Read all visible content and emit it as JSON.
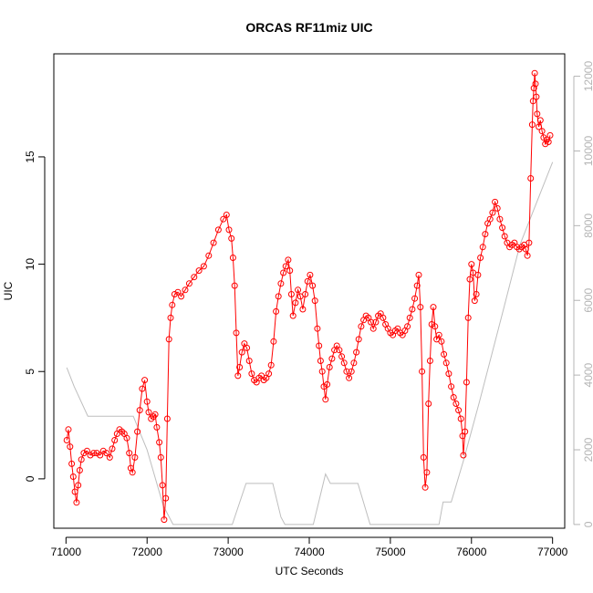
{
  "chart_data": {
    "type": "line",
    "title": "ORCAS RF11miz UIC",
    "xlabel": "UTC Seconds",
    "ylabel": "UIC",
    "xlim": [
      70850,
      77150
    ],
    "ylim": [
      -2.3,
      19.8
    ],
    "y2lim": [
      -100,
      12600
    ],
    "x_ticks": [
      71000,
      72000,
      73000,
      74000,
      75000,
      76000,
      77000
    ],
    "y_ticks": [
      0,
      5,
      10,
      15
    ],
    "y2_ticks": [
      0,
      2000,
      4000,
      6000,
      8000,
      10000,
      12000
    ],
    "grid": false,
    "colors": {
      "uic": "#ff0000",
      "altitude": "#bebebe",
      "right_axis": "#b4b4b4",
      "frame": "#000000"
    },
    "series": [
      {
        "axis": "left",
        "style": "line+circles",
        "points": [
          [
            71010,
            1.8
          ],
          [
            71030,
            2.3
          ],
          [
            71050,
            1.5
          ],
          [
            71070,
            0.7
          ],
          [
            71090,
            0.1
          ],
          [
            71110,
            -0.6
          ],
          [
            71130,
            -1.1
          ],
          [
            71150,
            -0.3
          ],
          [
            71170,
            0.4
          ],
          [
            71190,
            0.9
          ],
          [
            71220,
            1.2
          ],
          [
            71260,
            1.3
          ],
          [
            71300,
            1.1
          ],
          [
            71340,
            1.2
          ],
          [
            71380,
            1.2
          ],
          [
            71420,
            1.1
          ],
          [
            71460,
            1.3
          ],
          [
            71500,
            1.2
          ],
          [
            71540,
            1.0
          ],
          [
            71570,
            1.4
          ],
          [
            71600,
            1.8
          ],
          [
            71630,
            2.1
          ],
          [
            71660,
            2.3
          ],
          [
            71690,
            2.2
          ],
          [
            71720,
            2.1
          ],
          [
            71750,
            1.9
          ],
          [
            71780,
            1.2
          ],
          [
            71800,
            0.5
          ],
          [
            71820,
            0.3
          ],
          [
            71850,
            1.0
          ],
          [
            71880,
            2.2
          ],
          [
            71910,
            3.2
          ],
          [
            71940,
            4.2
          ],
          [
            71970,
            4.6
          ],
          [
            72000,
            3.6
          ],
          [
            72020,
            3.1
          ],
          [
            72050,
            2.8
          ],
          [
            72080,
            2.9
          ],
          [
            72100,
            3.0
          ],
          [
            72120,
            2.4
          ],
          [
            72150,
            1.7
          ],
          [
            72170,
            1.0
          ],
          [
            72190,
            -0.3
          ],
          [
            72210,
            -1.9
          ],
          [
            72230,
            -0.9
          ],
          [
            72250,
            2.8
          ],
          [
            72270,
            6.5
          ],
          [
            72290,
            7.5
          ],
          [
            72310,
            8.1
          ],
          [
            72340,
            8.6
          ],
          [
            72380,
            8.7
          ],
          [
            72420,
            8.5
          ],
          [
            72470,
            8.8
          ],
          [
            72520,
            9.1
          ],
          [
            72580,
            9.4
          ],
          [
            72640,
            9.7
          ],
          [
            72700,
            9.9
          ],
          [
            72760,
            10.4
          ],
          [
            72820,
            11.0
          ],
          [
            72880,
            11.6
          ],
          [
            72940,
            12.1
          ],
          [
            72980,
            12.3
          ],
          [
            73010,
            11.6
          ],
          [
            73040,
            11.2
          ],
          [
            73060,
            10.3
          ],
          [
            73080,
            9.0
          ],
          [
            73100,
            6.8
          ],
          [
            73120,
            4.8
          ],
          [
            73140,
            5.2
          ],
          [
            73170,
            5.9
          ],
          [
            73200,
            6.3
          ],
          [
            73230,
            6.1
          ],
          [
            73260,
            5.5
          ],
          [
            73290,
            4.9
          ],
          [
            73320,
            4.6
          ],
          [
            73350,
            4.5
          ],
          [
            73380,
            4.7
          ],
          [
            73410,
            4.8
          ],
          [
            73440,
            4.6
          ],
          [
            73470,
            4.7
          ],
          [
            73500,
            4.9
          ],
          [
            73530,
            5.3
          ],
          [
            73560,
            6.4
          ],
          [
            73590,
            7.8
          ],
          [
            73620,
            8.5
          ],
          [
            73650,
            9.1
          ],
          [
            73680,
            9.6
          ],
          [
            73710,
            9.9
          ],
          [
            73740,
            10.2
          ],
          [
            73760,
            9.7
          ],
          [
            73780,
            8.6
          ],
          [
            73800,
            7.6
          ],
          [
            73830,
            8.2
          ],
          [
            73860,
            8.8
          ],
          [
            73890,
            8.5
          ],
          [
            73920,
            7.9
          ],
          [
            73950,
            8.6
          ],
          [
            73980,
            9.2
          ],
          [
            74010,
            9.5
          ],
          [
            74040,
            9.0
          ],
          [
            74070,
            8.3
          ],
          [
            74100,
            7.0
          ],
          [
            74120,
            6.2
          ],
          [
            74140,
            5.5
          ],
          [
            74160,
            5.0
          ],
          [
            74180,
            4.3
          ],
          [
            74200,
            3.7
          ],
          [
            74220,
            4.4
          ],
          [
            74250,
            5.2
          ],
          [
            74280,
            5.6
          ],
          [
            74310,
            6.0
          ],
          [
            74340,
            6.2
          ],
          [
            74370,
            6.0
          ],
          [
            74400,
            5.7
          ],
          [
            74430,
            5.4
          ],
          [
            74460,
            5.0
          ],
          [
            74490,
            4.7
          ],
          [
            74520,
            5.0
          ],
          [
            74550,
            5.4
          ],
          [
            74580,
            5.9
          ],
          [
            74610,
            6.5
          ],
          [
            74640,
            7.1
          ],
          [
            74670,
            7.4
          ],
          [
            74700,
            7.6
          ],
          [
            74730,
            7.5
          ],
          [
            74760,
            7.3
          ],
          [
            74790,
            7.0
          ],
          [
            74820,
            7.3
          ],
          [
            74850,
            7.6
          ],
          [
            74880,
            7.7
          ],
          [
            74910,
            7.5
          ],
          [
            74940,
            7.2
          ],
          [
            74970,
            7.0
          ],
          [
            75000,
            6.8
          ],
          [
            75030,
            6.7
          ],
          [
            75060,
            6.9
          ],
          [
            75090,
            7.0
          ],
          [
            75120,
            6.8
          ],
          [
            75150,
            6.7
          ],
          [
            75180,
            6.9
          ],
          [
            75210,
            7.1
          ],
          [
            75240,
            7.5
          ],
          [
            75270,
            7.9
          ],
          [
            75300,
            8.4
          ],
          [
            75330,
            9.0
          ],
          [
            75350,
            9.5
          ],
          [
            75370,
            8.0
          ],
          [
            75390,
            5.0
          ],
          [
            75410,
            1.0
          ],
          [
            75430,
            -0.4
          ],
          [
            75450,
            0.3
          ],
          [
            75470,
            3.5
          ],
          [
            75490,
            5.5
          ],
          [
            75510,
            7.2
          ],
          [
            75530,
            8.0
          ],
          [
            75550,
            7.1
          ],
          [
            75570,
            6.5
          ],
          [
            75600,
            6.7
          ],
          [
            75630,
            6.4
          ],
          [
            75660,
            5.8
          ],
          [
            75690,
            5.4
          ],
          [
            75720,
            4.9
          ],
          [
            75750,
            4.3
          ],
          [
            75780,
            3.8
          ],
          [
            75810,
            3.5
          ],
          [
            75840,
            3.2
          ],
          [
            75870,
            2.8
          ],
          [
            75890,
            2.0
          ],
          [
            75900,
            1.1
          ],
          [
            75920,
            2.2
          ],
          [
            75940,
            4.5
          ],
          [
            75960,
            7.5
          ],
          [
            75980,
            9.3
          ],
          [
            76000,
            10.0
          ],
          [
            76020,
            9.6
          ],
          [
            76040,
            8.3
          ],
          [
            76060,
            8.6
          ],
          [
            76080,
            9.5
          ],
          [
            76110,
            10.3
          ],
          [
            76140,
            10.8
          ],
          [
            76170,
            11.4
          ],
          [
            76200,
            11.9
          ],
          [
            76230,
            12.1
          ],
          [
            76260,
            12.4
          ],
          [
            76290,
            12.9
          ],
          [
            76320,
            12.6
          ],
          [
            76350,
            12.1
          ],
          [
            76380,
            11.7
          ],
          [
            76410,
            11.3
          ],
          [
            76440,
            11.0
          ],
          [
            76470,
            10.8
          ],
          [
            76500,
            10.9
          ],
          [
            76530,
            11.0
          ],
          [
            76560,
            10.8
          ],
          [
            76590,
            10.7
          ],
          [
            76620,
            10.8
          ],
          [
            76650,
            10.9
          ],
          [
            76670,
            10.7
          ],
          [
            76690,
            10.4
          ],
          [
            76710,
            11.0
          ],
          [
            76730,
            14.0
          ],
          [
            76750,
            16.5
          ],
          [
            76760,
            17.6
          ],
          [
            76770,
            18.2
          ],
          [
            76780,
            18.9
          ],
          [
            76790,
            18.4
          ],
          [
            76800,
            17.8
          ],
          [
            76810,
            17.0
          ],
          [
            76830,
            16.4
          ],
          [
            76850,
            16.7
          ],
          [
            76870,
            16.2
          ],
          [
            76890,
            15.9
          ],
          [
            76910,
            15.6
          ],
          [
            76930,
            15.8
          ],
          [
            76950,
            15.7
          ],
          [
            76970,
            16.0
          ]
        ]
      },
      {
        "axis": "right",
        "style": "line",
        "points": [
          [
            71010,
            4200
          ],
          [
            71100,
            3700
          ],
          [
            71270,
            2900
          ],
          [
            71600,
            2900
          ],
          [
            71830,
            2900
          ],
          [
            72000,
            2000
          ],
          [
            72200,
            500
          ],
          [
            72320,
            0
          ],
          [
            72400,
            0
          ],
          [
            73000,
            0
          ],
          [
            73050,
            0
          ],
          [
            73220,
            1100
          ],
          [
            73300,
            1100
          ],
          [
            73550,
            1100
          ],
          [
            73650,
            200
          ],
          [
            73700,
            0
          ],
          [
            74050,
            0
          ],
          [
            74200,
            1350
          ],
          [
            74260,
            1100
          ],
          [
            74600,
            1100
          ],
          [
            74750,
            0
          ],
          [
            75600,
            0
          ],
          [
            75650,
            600
          ],
          [
            75750,
            600
          ],
          [
            75900,
            1700
          ],
          [
            76100,
            3300
          ],
          [
            76400,
            5800
          ],
          [
            76600,
            7500
          ],
          [
            77000,
            9700
          ]
        ]
      }
    ]
  }
}
